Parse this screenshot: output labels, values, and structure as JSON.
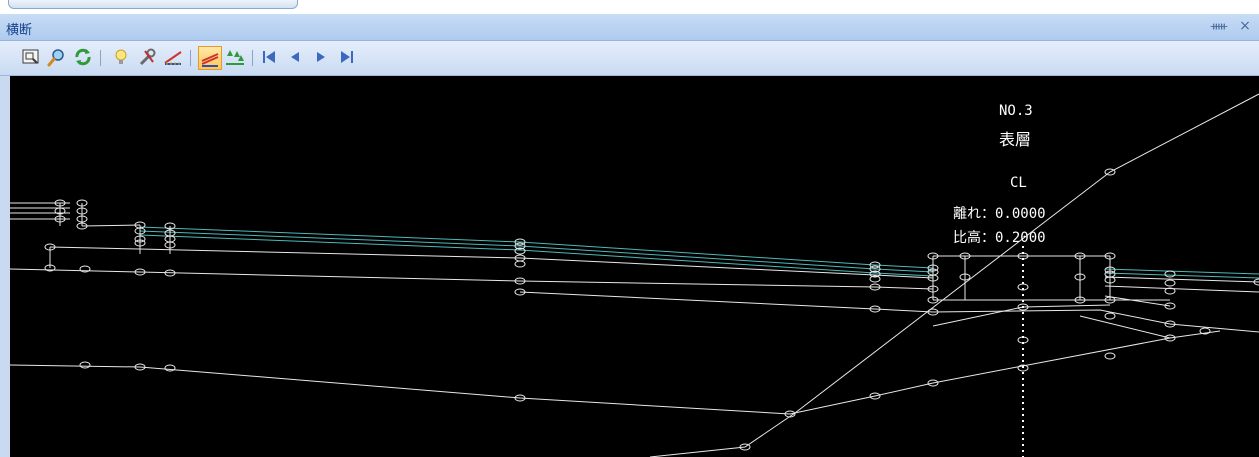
{
  "window": {
    "title": "横断",
    "pin_glyph": "ᚔ",
    "close_glyph": "×"
  },
  "toolbar": {
    "buttons": [
      {
        "icon": "zoom-window-icon"
      },
      {
        "icon": "zoom-search-icon"
      },
      {
        "icon": "refresh-icon"
      },
      {
        "icon": "lightbulb-icon"
      },
      {
        "icon": "tools-icon"
      },
      {
        "icon": "slope-line-icon"
      },
      {
        "icon": "layer-toggle-icon",
        "active": true
      },
      {
        "icon": "tree-plot-icon"
      },
      {
        "icon": "first-page-icon"
      },
      {
        "icon": "prev-icon"
      },
      {
        "icon": "next-icon"
      },
      {
        "icon": "last-page-icon"
      }
    ]
  },
  "drawing": {
    "station": "NO.3",
    "layer_name": "表層",
    "centerline_label": "CL",
    "distance_text": "離れ：0.0000",
    "elevation_text": "比高：0.2000",
    "colors": {
      "background": "#000000",
      "line": "#ffffff",
      "layer_line": "#4fb9b9",
      "centerline": "#ffffff"
    }
  }
}
